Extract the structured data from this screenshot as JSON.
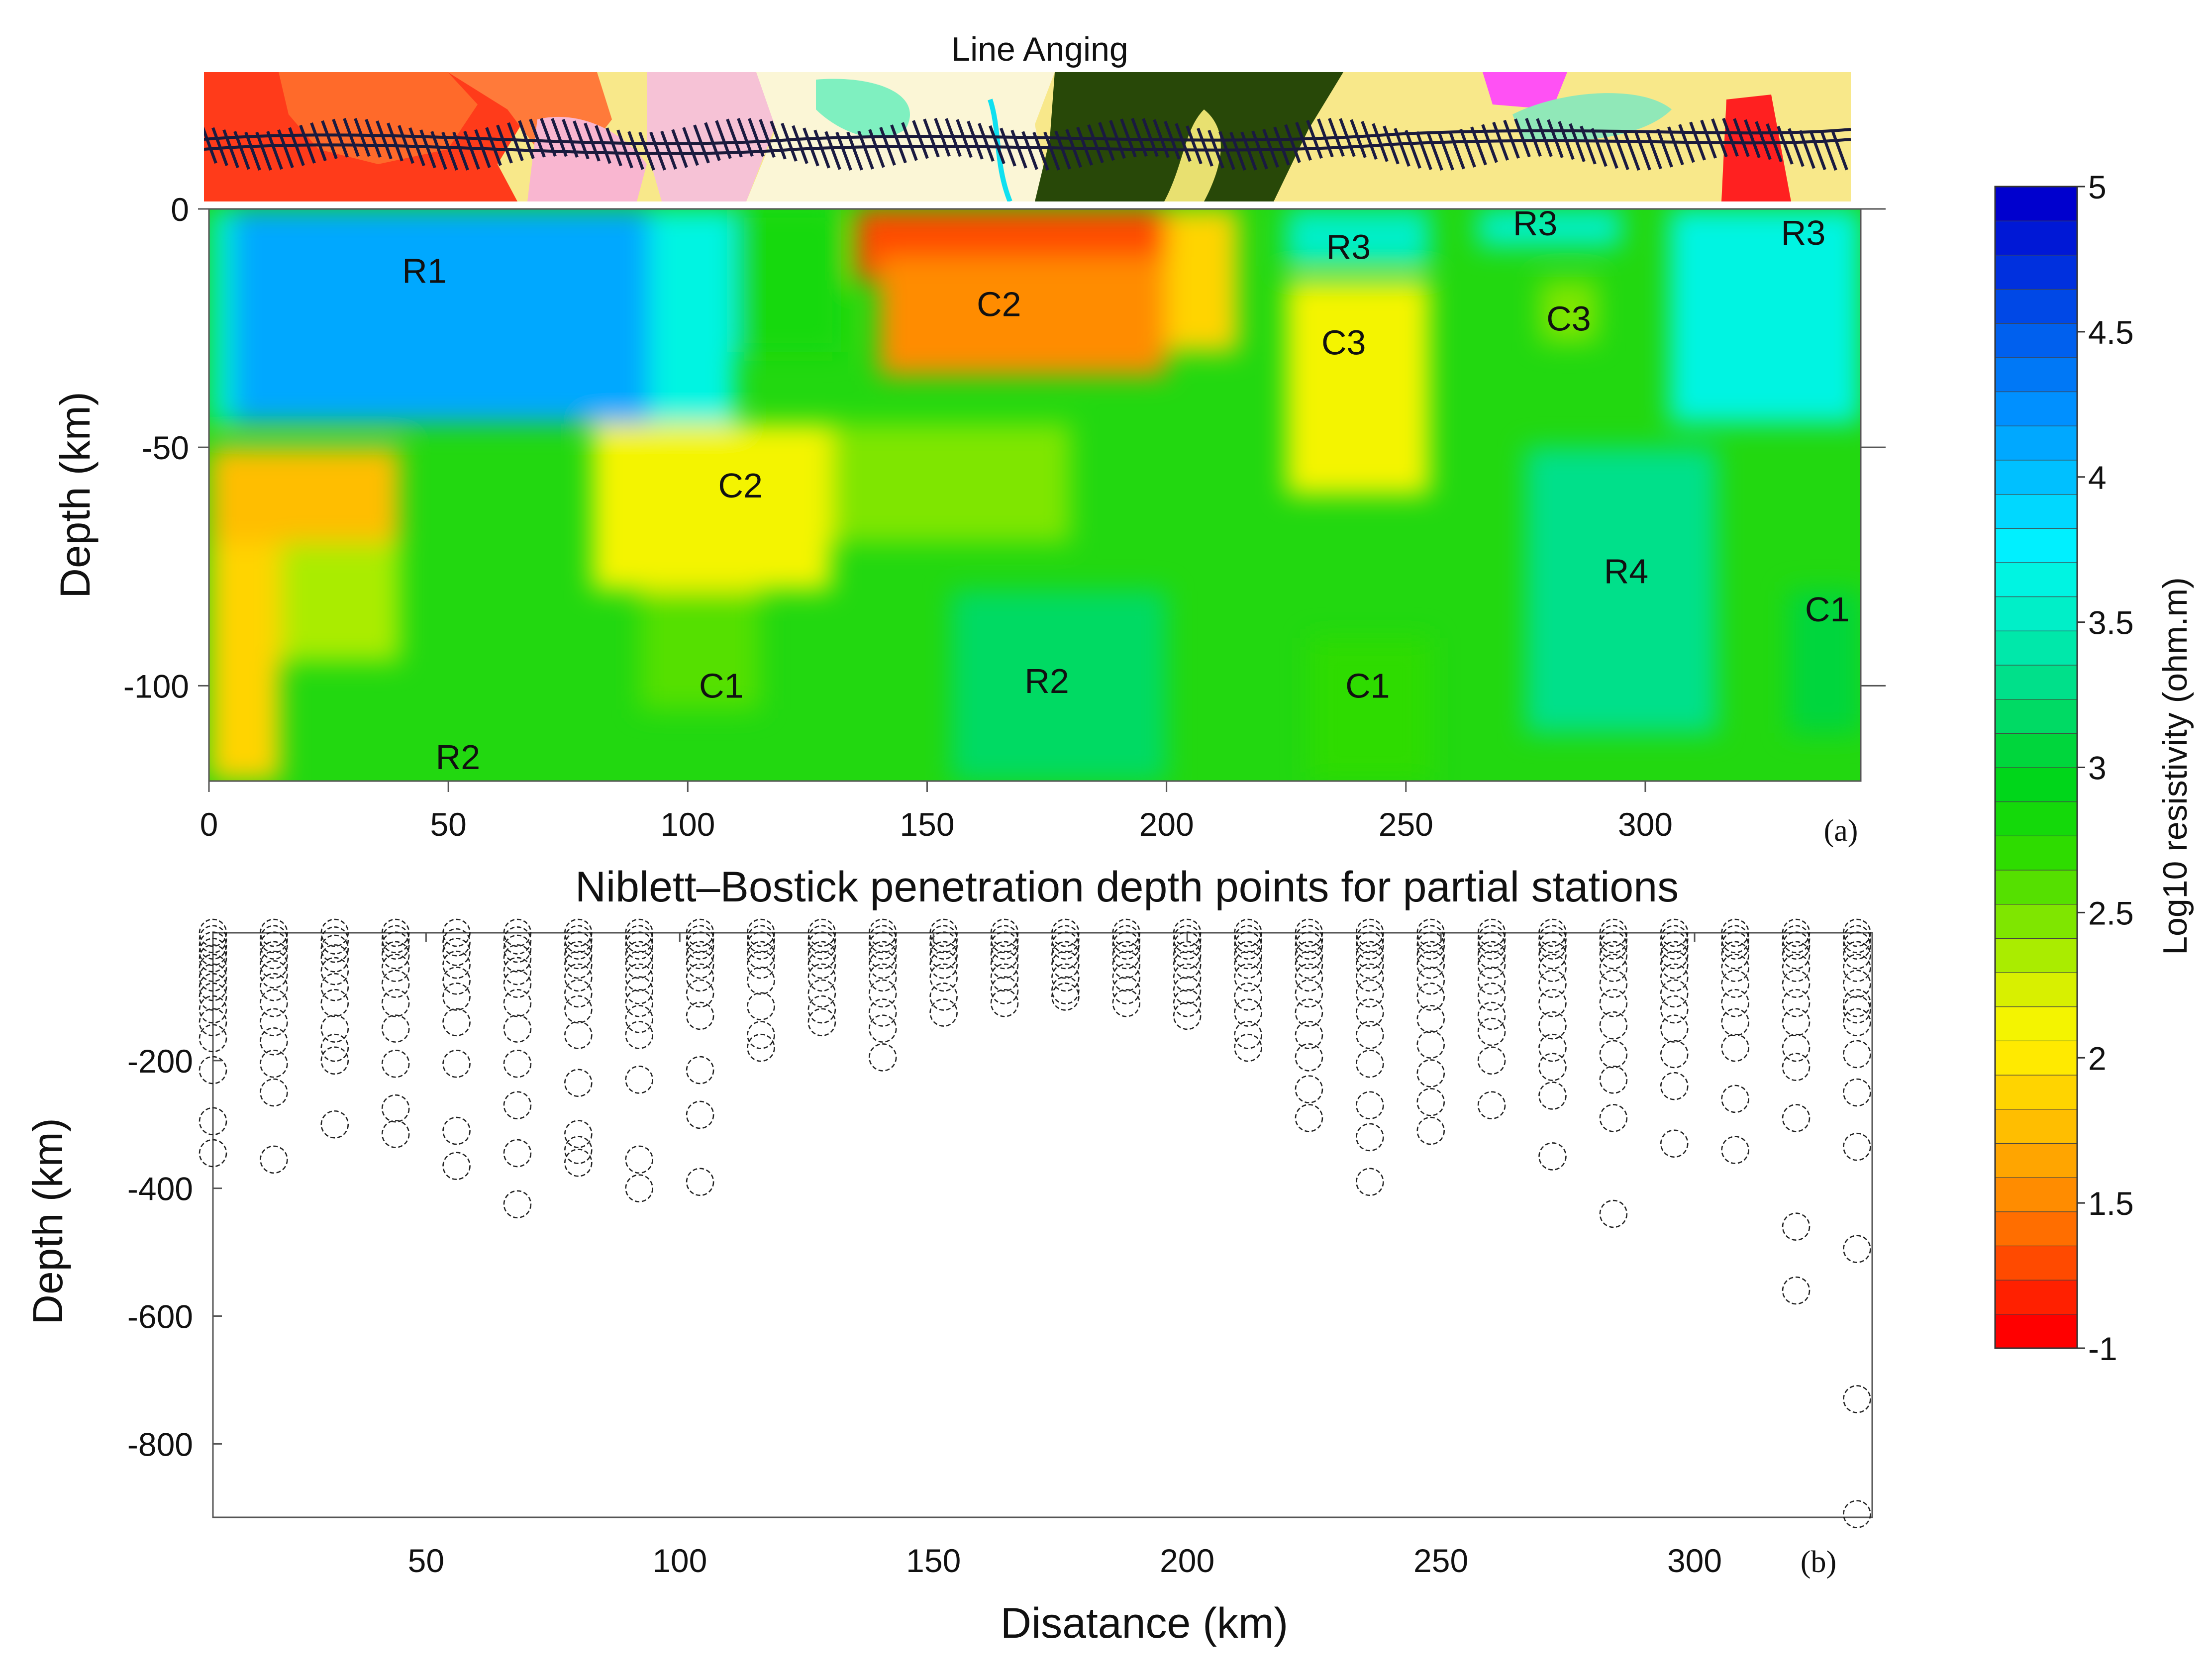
{
  "chart_data": [
    {
      "type": "heatmap",
      "panel_label": "(a)",
      "strip_title": "Line Anging",
      "ylabel": "Depth (km)",
      "xlim": [
        0,
        345
      ],
      "ylim": [
        -120,
        0
      ],
      "xticks": [
        0,
        50,
        100,
        150,
        200,
        250,
        300
      ],
      "yticks": [
        0,
        -50,
        -100
      ],
      "colorbar": {
        "label": "Log10 resistivity (ohm.m)",
        "ticks": [
          "5",
          "4.5",
          "4",
          "3.5",
          "3",
          "2.5",
          "2",
          "1.5",
          "-1"
        ],
        "colors": [
          "#ff0000",
          "#ff2000",
          "#ff4a00",
          "#ff6e00",
          "#ff8c00",
          "#ffa500",
          "#ffbe00",
          "#ffd400",
          "#ffea00",
          "#f4f400",
          "#d8f000",
          "#aaec00",
          "#7fe600",
          "#55e000",
          "#2edc00",
          "#14d90a",
          "#00d61a",
          "#00d63c",
          "#00da64",
          "#00e08a",
          "#00e8aa",
          "#00efc8",
          "#00f4e2",
          "#00f0ff",
          "#00d8ff",
          "#00c0ff",
          "#00a8ff",
          "#0090ff",
          "#0078f6",
          "#0060ee",
          "#0048e6",
          "#0030de",
          "#0018d6",
          "#0000ce"
        ]
      },
      "cells": [
        {
          "x": [
            5,
            92
          ],
          "y": [
            -45,
            0
          ],
          "value": 4.2
        },
        {
          "x": [
            92,
            110
          ],
          "y": [
            -45,
            0
          ],
          "value": 3.7
        },
        {
          "x": [
            0,
            5
          ],
          "y": [
            -45,
            0
          ],
          "value": 3.6
        },
        {
          "x": [
            110,
            132
          ],
          "y": [
            -30,
            0
          ],
          "value": 2.8
        },
        {
          "x": [
            135,
            200
          ],
          "y": [
            -15,
            0
          ],
          "value": 1.3
        },
        {
          "x": [
            140,
            200
          ],
          "y": [
            -35,
            -10
          ],
          "value": 1.5
        },
        {
          "x": [
            200,
            215
          ],
          "y": [
            -30,
            0
          ],
          "value": 1.9
        },
        {
          "x": [
            225,
            255
          ],
          "y": [
            -12,
            0
          ],
          "value": 3.6
        },
        {
          "x": [
            265,
            295
          ],
          "y": [
            -8,
            0
          ],
          "value": 3.5
        },
        {
          "x": [
            305,
            345
          ],
          "y": [
            -45,
            0
          ],
          "value": 3.7
        },
        {
          "x": [
            225,
            255
          ],
          "y": [
            -60,
            -15
          ],
          "value": 2.1
        },
        {
          "x": [
            278,
            290
          ],
          "y": [
            -28,
            -15
          ],
          "value": 2.4
        },
        {
          "x": [
            0,
            40
          ],
          "y": [
            -70,
            -50
          ],
          "value": 1.7
        },
        {
          "x": [
            0,
            15
          ],
          "y": [
            -120,
            -70
          ],
          "value": 1.9
        },
        {
          "x": [
            15,
            40
          ],
          "y": [
            -95,
            -70
          ],
          "value": 2.3
        },
        {
          "x": [
            80,
            130
          ],
          "y": [
            -80,
            -45
          ],
          "value": 2.1
        },
        {
          "x": [
            130,
            180
          ],
          "y": [
            -70,
            -45
          ],
          "value": 2.4
        },
        {
          "x": [
            90,
            115
          ],
          "y": [
            -105,
            -80
          ],
          "value": 2.6
        },
        {
          "x": [
            155,
            200
          ],
          "y": [
            -120,
            -80
          ],
          "value": 3.2
        },
        {
          "x": [
            230,
            255
          ],
          "y": [
            -120,
            -90
          ],
          "value": 2.7
        },
        {
          "x": [
            275,
            315
          ],
          "y": [
            -110,
            -50
          ],
          "value": 3.3
        },
        {
          "x": [
            330,
            345
          ],
          "y": [
            -110,
            -80
          ],
          "value": 3.1
        }
      ],
      "annotations": [
        {
          "text": "R1",
          "x": 45,
          "y": -13
        },
        {
          "text": "C2",
          "x": 165,
          "y": -20
        },
        {
          "text": "R3",
          "x": 238,
          "y": -8
        },
        {
          "text": "R3",
          "x": 277,
          "y": -3
        },
        {
          "text": "R3",
          "x": 333,
          "y": -5
        },
        {
          "text": "C3",
          "x": 284,
          "y": -23
        },
        {
          "text": "C3",
          "x": 237,
          "y": -28
        },
        {
          "text": "C2",
          "x": 111,
          "y": -58
        },
        {
          "text": "R4",
          "x": 296,
          "y": -76
        },
        {
          "text": "C1",
          "x": 338,
          "y": -84
        },
        {
          "text": "R2",
          "x": 175,
          "y": -99
        },
        {
          "text": "C1",
          "x": 107,
          "y": -100
        },
        {
          "text": "C1",
          "x": 242,
          "y": -100
        },
        {
          "text": "R2",
          "x": 52,
          "y": -115
        }
      ]
    },
    {
      "type": "scatter",
      "panel_label": "(b)",
      "title": "Niblett–Bostick penetration depth points for partial stations",
      "xlabel": "Disatance (km)",
      "ylabel": "Depth (km)",
      "xlim": [
        8,
        335
      ],
      "ylim": [
        -915,
        0
      ],
      "xticks": [
        50,
        100,
        150,
        200,
        250,
        300
      ],
      "yticks": [
        -200,
        -400,
        -600,
        -800
      ],
      "stations": [
        {
          "x": 8,
          "depths": [
            0,
            10,
            20,
            30,
            40,
            55,
            70,
            85,
            100,
            120,
            140,
            165,
            215,
            295,
            345
          ]
        },
        {
          "x": 20,
          "depths": [
            0,
            10,
            20,
            35,
            50,
            65,
            85,
            110,
            140,
            170,
            205,
            250,
            355
          ]
        },
        {
          "x": 32,
          "depths": [
            0,
            12,
            25,
            40,
            60,
            85,
            110,
            150,
            180,
            200,
            300
          ]
        },
        {
          "x": 44,
          "depths": [
            0,
            10,
            20,
            35,
            55,
            80,
            110,
            150,
            205,
            275,
            315
          ]
        },
        {
          "x": 56,
          "depths": [
            0,
            15,
            30,
            50,
            75,
            100,
            140,
            205,
            310,
            365
          ]
        },
        {
          "x": 68,
          "depths": [
            0,
            12,
            25,
            40,
            60,
            80,
            110,
            150,
            205,
            270,
            345,
            425
          ]
        },
        {
          "x": 80,
          "depths": [
            0,
            10,
            20,
            35,
            50,
            70,
            95,
            120,
            160,
            235,
            315,
            340,
            360
          ]
        },
        {
          "x": 92,
          "depths": [
            0,
            10,
            20,
            35,
            50,
            70,
            90,
            110,
            135,
            160,
            230,
            355,
            400
          ]
        },
        {
          "x": 104,
          "depths": [
            0,
            10,
            20,
            35,
            50,
            70,
            95,
            130,
            215,
            285,
            390
          ]
        },
        {
          "x": 116,
          "depths": [
            0,
            10,
            20,
            35,
            50,
            75,
            115,
            160,
            180
          ]
        },
        {
          "x": 128,
          "depths": [
            0,
            10,
            20,
            35,
            50,
            70,
            95,
            120,
            140
          ]
        },
        {
          "x": 140,
          "depths": [
            0,
            10,
            20,
            35,
            50,
            70,
            95,
            125,
            150,
            195
          ]
        },
        {
          "x": 152,
          "depths": [
            0,
            10,
            20,
            35,
            50,
            70,
            100,
            125
          ]
        },
        {
          "x": 164,
          "depths": [
            0,
            10,
            20,
            35,
            50,
            70,
            90,
            110
          ]
        },
        {
          "x": 176,
          "depths": [
            0,
            10,
            20,
            35,
            50,
            70,
            90,
            100
          ]
        },
        {
          "x": 188,
          "depths": [
            0,
            10,
            20,
            35,
            50,
            70,
            90,
            110
          ]
        },
        {
          "x": 200,
          "depths": [
            0,
            10,
            20,
            35,
            50,
            70,
            90,
            110,
            130
          ]
        },
        {
          "x": 212,
          "depths": [
            0,
            10,
            20,
            35,
            50,
            70,
            100,
            125,
            160,
            180
          ]
        },
        {
          "x": 224,
          "depths": [
            0,
            10,
            20,
            35,
            50,
            70,
            95,
            125,
            160,
            195,
            245,
            290
          ]
        },
        {
          "x": 236,
          "depths": [
            0,
            10,
            20,
            35,
            50,
            70,
            95,
            125,
            160,
            205,
            270,
            320,
            390
          ]
        },
        {
          "x": 248,
          "depths": [
            0,
            10,
            20,
            35,
            50,
            75,
            100,
            135,
            175,
            220,
            265,
            310
          ]
        },
        {
          "x": 260,
          "depths": [
            0,
            10,
            20,
            35,
            50,
            75,
            100,
            130,
            155,
            200,
            270
          ]
        },
        {
          "x": 272,
          "depths": [
            0,
            10,
            20,
            35,
            55,
            80,
            110,
            145,
            180,
            210,
            255,
            350
          ]
        },
        {
          "x": 284,
          "depths": [
            0,
            10,
            20,
            35,
            55,
            80,
            110,
            145,
            190,
            230,
            290,
            440
          ]
        },
        {
          "x": 296,
          "depths": [
            0,
            10,
            20,
            35,
            50,
            70,
            95,
            120,
            150,
            190,
            240,
            330
          ]
        },
        {
          "x": 308,
          "depths": [
            0,
            10,
            20,
            35,
            55,
            80,
            110,
            140,
            180,
            260,
            340
          ]
        },
        {
          "x": 320,
          "depths": [
            0,
            10,
            20,
            35,
            55,
            80,
            110,
            140,
            180,
            210,
            290,
            460,
            560
          ]
        },
        {
          "x": 332,
          "depths": [
            0,
            10,
            20,
            35,
            55,
            80,
            110,
            120,
            140,
            190,
            250,
            335,
            495,
            730,
            910
          ]
        }
      ]
    }
  ]
}
